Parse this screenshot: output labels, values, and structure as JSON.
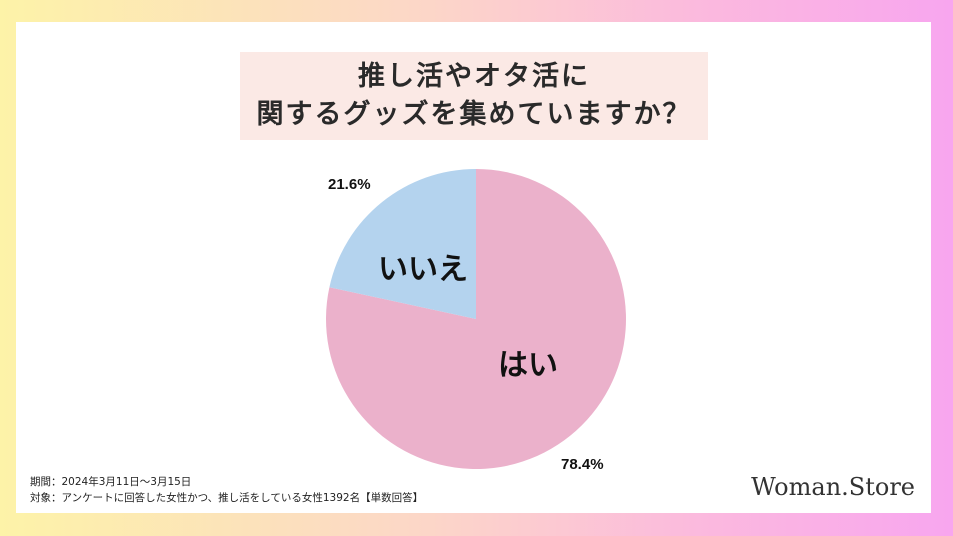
{
  "chart_data": {
    "type": "pie",
    "title_lines": [
      "推し活やオタ活に",
      "関するグッズを集めていますか？"
    ],
    "slices": [
      {
        "label": "はい",
        "value": 78.4,
        "value_label": "78.4%",
        "color": "#ebb1cb"
      },
      {
        "label": "いいえ",
        "value": 21.6,
        "value_label": "21.6%",
        "color": "#b4d3ee"
      }
    ]
  },
  "footnotes": {
    "period": "期間：2024年3月11日〜3月15日",
    "target": "対象：アンケートに回答した女性かつ、推し活をしている女性1392名【単数回答】"
  },
  "brand": "Woman.Store"
}
